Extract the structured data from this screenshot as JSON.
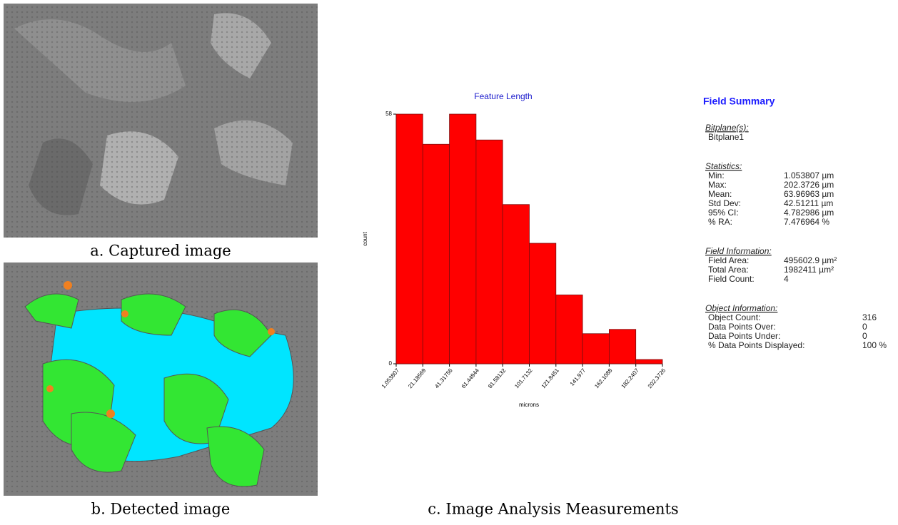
{
  "captions": [
    "a. Captured image",
    "b. Detected image",
    "c. Image Analysis Measurements"
  ],
  "chart_data": {
    "type": "histogram",
    "title": "Feature Length",
    "x_label": "microns",
    "y_label": "count",
    "bins": [
      1.053807,
      21.18569,
      41.31756,
      61.44944,
      81.58132,
      101.7132,
      121.8451,
      141.977,
      162.1088,
      182.2407,
      202.3726
    ],
    "values": [
      58,
      51,
      58,
      52,
      37,
      28,
      16,
      7,
      8,
      1
    ],
    "color": "#ff0000",
    "xlim": [
      1.053807,
      202.3726
    ],
    "xticks": [
      1.053807,
      21.18569,
      41.31756,
      61.44944,
      81.58132,
      101.7132,
      121.8451,
      141.977,
      162.1088,
      182.2407,
      202.3726
    ],
    "ylim": [
      0,
      58
    ],
    "yticks": [
      0,
      58
    ]
  },
  "field_summary": {
    "title": "Field Summary",
    "sections": [
      {
        "heading": "Bitplane(s):",
        "rows": [
          [
            "Bitplane1"
          ]
        ]
      },
      {
        "heading": "Statistics:",
        "rows": [
          [
            "Min:",
            "1.053807 µm"
          ],
          [
            "Max:",
            "202.3726 µm"
          ],
          [
            "Mean:",
            "63.96963 µm"
          ],
          [
            "Std Dev:",
            "42.51211 µm"
          ],
          [
            "95% CI:",
            "4.782986 µm"
          ],
          [
            "% RA:",
            "7.476964 %"
          ]
        ]
      },
      {
        "heading": "Field Information:",
        "rows": [
          [
            "Field Area:",
            "495602.9 µm²"
          ],
          [
            "Total Area:",
            "1982411 µm²"
          ],
          [
            "Field Count:",
            "4"
          ]
        ]
      },
      {
        "heading": "Object Information:",
        "rows": [
          [
            "Object Count:",
            "316"
          ],
          [
            "Data Points Over:",
            "0"
          ],
          [
            "Data Points Under:",
            "0"
          ],
          [
            "% Data Points Displayed:",
            "100 %"
          ]
        ]
      }
    ]
  }
}
